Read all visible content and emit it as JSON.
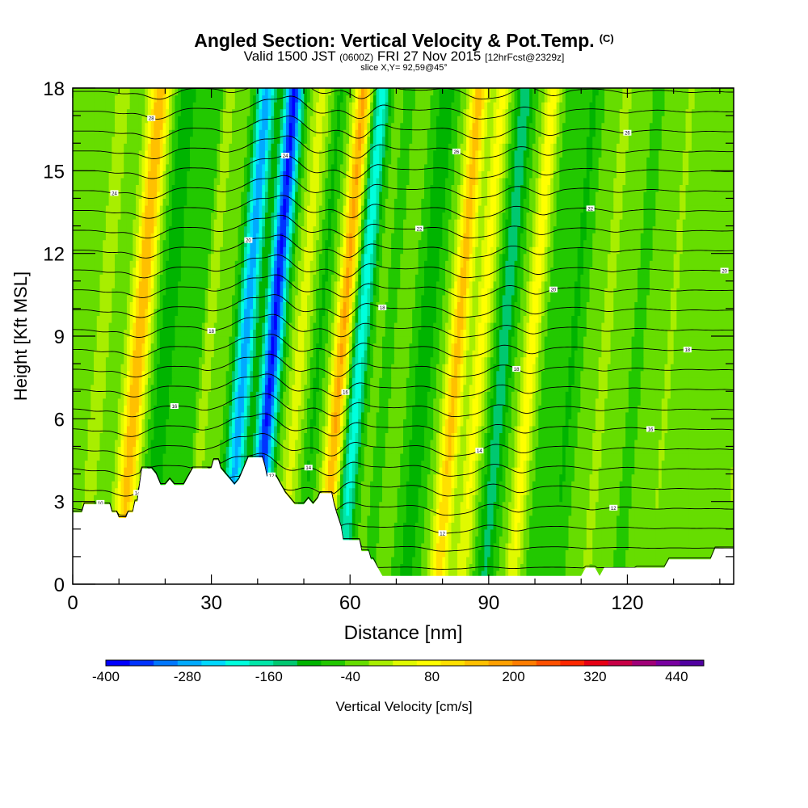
{
  "header": {
    "title": "Angled Section: Vertical Velocity & Pot.Temp.",
    "copyright": "(C)",
    "valid_prefix": "Valid 1500 JST",
    "valid_zulu": "(0600Z)",
    "valid_date": "FRI 27 Nov 2015",
    "forecast": "[12hrFcst@2329z]",
    "slice": "slice X,Y= 92,59@45°"
  },
  "chart_data": {
    "type": "heatmap",
    "xlabel": "Distance [nm]",
    "ylabel": "Height [Kft MSL]",
    "xlim": [
      0,
      143
    ],
    "ylim": [
      0,
      18
    ],
    "x_ticks": [
      0,
      30,
      60,
      90,
      120
    ],
    "y_ticks": [
      0,
      3,
      6,
      9,
      12,
      15,
      18
    ],
    "colorbar": {
      "label": "Vertical Velocity [cm/s]",
      "min": -400,
      "max": 480,
      "step": 40,
      "tick_labels": [
        -400,
        -280,
        -160,
        -40,
        80,
        200,
        320,
        440
      ],
      "colors": [
        "#0000ff",
        "#0033ff",
        "#0077ff",
        "#00aaff",
        "#00d8ff",
        "#00ffdd",
        "#00e6a8",
        "#00c870",
        "#00b400",
        "#22c800",
        "#66dd00",
        "#a8ee00",
        "#e0fa00",
        "#ffff00",
        "#ffe000",
        "#ffc000",
        "#ffa000",
        "#ff7d00",
        "#ff5000",
        "#ff2800",
        "#e60014",
        "#c80046",
        "#a00078",
        "#7800a0",
        "#5000a0"
      ]
    },
    "vertical_velocity_bands": [
      {
        "x": 2,
        "w": 1.5,
        "v": 60
      },
      {
        "x": 4,
        "w": 1.5,
        "v": 0
      },
      {
        "x": 10,
        "w": 2.2,
        "v": 220
      },
      {
        "x": 16,
        "w": 2.5,
        "v": -80
      },
      {
        "x": 22,
        "w": 2.0,
        "v": -50
      },
      {
        "x": 25,
        "w": 1.2,
        "v": 60
      },
      {
        "x": 33,
        "w": 2.0,
        "v": -280
      },
      {
        "x": 39,
        "w": 2.0,
        "v": -380
      },
      {
        "x": 45,
        "w": 1.8,
        "v": 80
      },
      {
        "x": 49,
        "w": 1.5,
        "v": -60
      },
      {
        "x": 54,
        "w": 1.8,
        "v": 230
      },
      {
        "x": 58,
        "w": 1.8,
        "v": -200
      },
      {
        "x": 64,
        "w": 1.4,
        "v": -30
      },
      {
        "x": 72,
        "w": 2.5,
        "v": -80
      },
      {
        "x": 79,
        "w": 2.0,
        "v": 200
      },
      {
        "x": 84,
        "w": 1.7,
        "v": 120
      },
      {
        "x": 89,
        "w": 2.0,
        "v": -120
      },
      {
        "x": 95,
        "w": 1.6,
        "v": 130
      },
      {
        "x": 99,
        "w": 1.8,
        "v": -30
      },
      {
        "x": 104,
        "w": 2.0,
        "v": -60
      },
      {
        "x": 111,
        "w": 1.2,
        "v": 50
      },
      {
        "x": 118,
        "w": 1.5,
        "v": -30
      },
      {
        "x": 125,
        "w": 1.5,
        "v": 30
      },
      {
        "x": 134,
        "w": 1.8,
        "v": 20
      },
      {
        "x": 141,
        "w": 1.5,
        "v": 30
      }
    ],
    "terrain_heights_kft": [
      [
        0,
        2.6
      ],
      [
        2,
        2.6
      ],
      [
        2.5,
        2.9
      ],
      [
        8,
        2.9
      ],
      [
        8.5,
        2.6
      ],
      [
        9.5,
        2.6
      ],
      [
        10,
        2.4
      ],
      [
        11.5,
        2.4
      ],
      [
        12,
        2.6
      ],
      [
        13,
        2.6
      ],
      [
        13.5,
        3.0
      ],
      [
        14,
        3.0
      ],
      [
        14.5,
        3.6
      ],
      [
        15,
        4.2
      ],
      [
        17,
        4.2
      ],
      [
        18,
        4.0
      ],
      [
        19,
        3.6
      ],
      [
        20,
        3.6
      ],
      [
        21,
        3.8
      ],
      [
        22,
        3.6
      ],
      [
        24,
        3.6
      ],
      [
        25,
        3.9
      ],
      [
        26,
        4.2
      ],
      [
        30,
        4.2
      ],
      [
        30.5,
        4.5
      ],
      [
        31.5,
        4.5
      ],
      [
        32,
        4.2
      ],
      [
        33,
        4.0
      ],
      [
        34,
        3.8
      ],
      [
        35,
        3.6
      ],
      [
        36,
        3.8
      ],
      [
        37,
        4.2
      ],
      [
        38,
        4.6
      ],
      [
        41,
        4.6
      ],
      [
        41.5,
        4.3
      ],
      [
        42,
        3.9
      ],
      [
        44,
        3.9
      ],
      [
        45,
        3.6
      ],
      [
        46,
        3.3
      ],
      [
        47,
        3.1
      ],
      [
        48,
        2.9
      ],
      [
        50,
        2.9
      ],
      [
        51,
        3.1
      ],
      [
        52,
        2.9
      ],
      [
        53,
        3.1
      ],
      [
        53.5,
        3.3
      ],
      [
        56,
        3.3
      ],
      [
        56.5,
        2.9
      ],
      [
        57,
        2.6
      ],
      [
        58,
        2.1
      ],
      [
        58.5,
        1.6
      ],
      [
        62,
        1.6
      ],
      [
        62.5,
        1.2
      ],
      [
        64,
        1.2
      ],
      [
        64.5,
        0.9
      ],
      [
        65,
        0.9
      ],
      [
        66,
        0.6
      ],
      [
        67,
        0.3
      ],
      [
        71,
        0.3
      ],
      [
        110,
        0.3
      ],
      [
        111,
        0.6
      ],
      [
        113,
        0.6
      ],
      [
        114,
        0.3
      ],
      [
        115,
        0.6
      ],
      [
        123,
        0.6
      ],
      [
        128,
        0.6
      ],
      [
        129,
        0.9
      ],
      [
        134,
        0.9
      ],
      [
        138,
        0.9
      ],
      [
        139,
        1.3
      ],
      [
        143,
        1.3
      ]
    ],
    "theta_contours": {
      "levels_count": 27,
      "base_height_kft": 0.6,
      "spacing_kft": 0.72,
      "contour_labels": [
        "10",
        "12",
        "12",
        "12",
        "14",
        "14",
        "14",
        "16",
        "16",
        "16",
        "18",
        "18",
        "18",
        "18",
        "20",
        "20",
        "20",
        "22",
        "22",
        "24",
        "24",
        "26",
        "26",
        "28",
        "28",
        "30"
      ]
    }
  }
}
